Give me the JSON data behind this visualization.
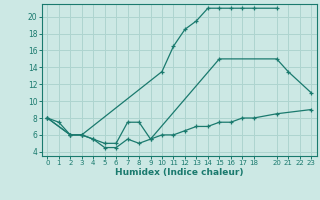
{
  "xlabel": "Humidex (Indice chaleur)",
  "bg_color": "#cce8e4",
  "grid_color": "#aed4cf",
  "line_color": "#1a7a6e",
  "xlim": [
    -0.5,
    23.5
  ],
  "ylim": [
    3.5,
    21.5
  ],
  "xticks": [
    0,
    1,
    2,
    3,
    4,
    5,
    6,
    7,
    8,
    9,
    10,
    11,
    12,
    13,
    14,
    15,
    16,
    17,
    18,
    20,
    21,
    22,
    23
  ],
  "yticks": [
    4,
    6,
    8,
    10,
    12,
    14,
    16,
    18,
    20
  ],
  "line1_x": [
    0,
    1,
    2,
    3,
    10,
    11,
    12,
    13,
    14,
    15,
    16,
    17,
    18,
    20
  ],
  "line1_y": [
    8.0,
    7.5,
    6.0,
    6.0,
    13.5,
    16.5,
    18.5,
    19.5,
    21.0,
    21.0,
    21.0,
    21.0,
    21.0,
    21.0
  ],
  "line2_x": [
    0,
    2,
    3,
    4,
    5,
    6,
    7,
    8,
    9,
    15,
    20,
    21,
    23
  ],
  "line2_y": [
    8.0,
    6.0,
    6.0,
    5.5,
    5.0,
    5.0,
    7.5,
    7.5,
    5.5,
    15.0,
    15.0,
    13.5,
    11.0
  ],
  "line3_x": [
    0,
    2,
    3,
    4,
    5,
    6,
    7,
    8,
    9,
    10,
    11,
    12,
    13,
    14,
    15,
    16,
    17,
    18,
    20,
    23
  ],
  "line3_y": [
    8.0,
    6.0,
    6.0,
    5.5,
    4.5,
    4.5,
    5.5,
    5.0,
    5.5,
    6.0,
    6.0,
    6.5,
    7.0,
    7.0,
    7.5,
    7.5,
    8.0,
    8.0,
    8.5,
    9.0
  ]
}
